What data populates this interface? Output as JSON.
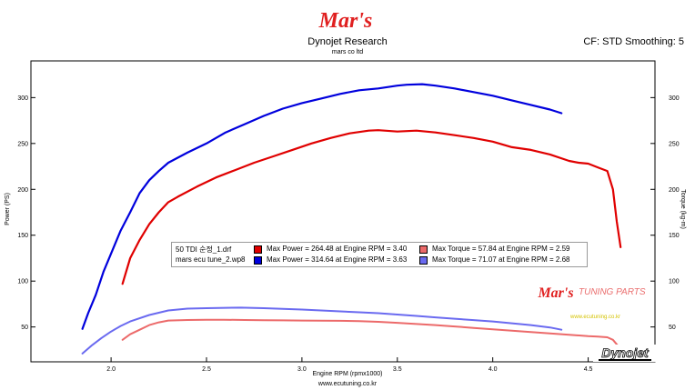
{
  "header": {
    "logo_text": "Mar's",
    "title": "Dynojet Research",
    "subtitle": "mars co ltd",
    "correction": "CF: STD Smoothing: 5"
  },
  "footer": {
    "xlabel": "Engine RPM (rpmx1000)",
    "website": "www.ecutuning.co.kr"
  },
  "legend": {
    "rows": [
      {
        "file": "50 TDI 순정_1.drf",
        "power": "Max Power = 264.48 at Engine RPM = 3.40",
        "torque": "Max Torque = 57.84 at Engine RPM = 2.59"
      },
      {
        "file": "mars ecu tune_2.wp8",
        "power": "Max Power = 314.64 at Engine RPM = 3.63",
        "torque": "Max Torque = 71.07 at Engine RPM = 2.68"
      }
    ]
  },
  "watermark": {
    "tuning_parts": "TUNING PARTS",
    "url": "www.ecutuning.co.kr",
    "dynojet_logo_text": "Dynojet"
  },
  "colors": {
    "stock_power": "#e00000",
    "stock_torque": "#ec6a6a",
    "tuned_power": "#0000dd",
    "tuned_torque": "#6a6af0"
  },
  "chart_data": {
    "type": "line",
    "xlabel": "Engine RPM (rpmx1000)",
    "ylabel_left": "Power (PS)",
    "ylabel_right": "Torque (kg-m)",
    "xlim": [
      1.58,
      4.85
    ],
    "ylim_left": [
      12,
      340
    ],
    "ylim_right": [
      12,
      340
    ],
    "x_ticks": [
      2.0,
      2.5,
      3.0,
      3.5,
      4.0,
      4.5
    ],
    "y_ticks_left": [
      50,
      100,
      150,
      200,
      250,
      300
    ],
    "y_ticks_right": [
      50,
      100,
      150,
      200,
      250,
      300
    ],
    "grid": false,
    "series": [
      {
        "name": "50 TDI 순정_1.drf",
        "kind": "power",
        "color": "#e00000",
        "x": [
          2.06,
          2.1,
          2.15,
          2.2,
          2.25,
          2.3,
          2.35,
          2.45,
          2.55,
          2.65,
          2.75,
          2.85,
          2.95,
          3.05,
          3.15,
          3.25,
          3.35,
          3.4,
          3.5,
          3.6,
          3.7,
          3.8,
          3.9,
          4.0,
          4.1,
          4.2,
          4.3,
          4.4,
          4.45,
          4.5,
          4.55,
          4.6,
          4.63,
          4.65,
          4.67
        ],
        "y": [
          97,
          125,
          145,
          162,
          175,
          186,
          192,
          203,
          213,
          221,
          229,
          236,
          243,
          250,
          256,
          261,
          264,
          264.48,
          263,
          264,
          262,
          259,
          256,
          252,
          246,
          243,
          238,
          231,
          229,
          228,
          224,
          220,
          200,
          165,
          137
        ]
      },
      {
        "name": "mars ecu tune_2.wp8",
        "kind": "power",
        "color": "#0000dd",
        "x": [
          1.85,
          1.88,
          1.92,
          1.96,
          2.0,
          2.05,
          2.1,
          2.15,
          2.2,
          2.25,
          2.3,
          2.4,
          2.5,
          2.6,
          2.7,
          2.8,
          2.9,
          3.0,
          3.1,
          3.2,
          3.3,
          3.4,
          3.5,
          3.55,
          3.63,
          3.7,
          3.8,
          3.9,
          4.0,
          4.1,
          4.2,
          4.3,
          4.36
        ],
        "y": [
          48,
          65,
          85,
          110,
          130,
          155,
          175,
          196,
          210,
          220,
          229,
          240,
          250,
          262,
          271,
          280,
          288,
          294,
          299,
          304,
          308,
          310,
          313,
          314,
          314.64,
          313,
          310,
          306,
          302,
          297,
          292,
          287,
          283
        ]
      },
      {
        "name": "50 TDI 순정_1.drf",
        "kind": "torque",
        "color": "#ec6a6a",
        "x": [
          2.06,
          2.1,
          2.15,
          2.2,
          2.25,
          2.3,
          2.4,
          2.5,
          2.59,
          2.7,
          2.8,
          2.9,
          3.0,
          3.1,
          3.2,
          3.3,
          3.4,
          3.5,
          3.6,
          3.7,
          3.8,
          3.9,
          4.0,
          4.1,
          4.2,
          4.3,
          4.4,
          4.5,
          4.55,
          4.6,
          4.63,
          4.65,
          4.67
        ],
        "y": [
          36,
          42,
          47,
          52,
          55,
          57,
          57.6,
          57.8,
          57.84,
          57.6,
          57.4,
          57.2,
          57.0,
          56.8,
          56.7,
          56.4,
          55.6,
          54.5,
          53.2,
          52.0,
          50.5,
          49.0,
          47.5,
          46.0,
          44.5,
          43.0,
          41.5,
          40.0,
          39.5,
          38.8,
          36.0,
          31.0,
          26.0
        ]
      },
      {
        "name": "mars ecu tune_2.wp8",
        "kind": "torque",
        "color": "#6a6af0",
        "x": [
          1.85,
          1.9,
          1.95,
          2.0,
          2.05,
          2.1,
          2.2,
          2.3,
          2.4,
          2.5,
          2.6,
          2.68,
          2.8,
          2.9,
          3.0,
          3.1,
          3.2,
          3.3,
          3.4,
          3.5,
          3.6,
          3.7,
          3.8,
          3.9,
          4.0,
          4.1,
          4.2,
          4.3,
          4.36
        ],
        "y": [
          21,
          30,
          38,
          45,
          51,
          56,
          63,
          68,
          70,
          70.5,
          70.9,
          71.07,
          70.5,
          69.8,
          69.0,
          68.0,
          67.0,
          66.0,
          65.0,
          63.5,
          62.0,
          60.5,
          59.0,
          57.5,
          56.0,
          54.0,
          52.0,
          49.5,
          47.0
        ]
      }
    ]
  }
}
